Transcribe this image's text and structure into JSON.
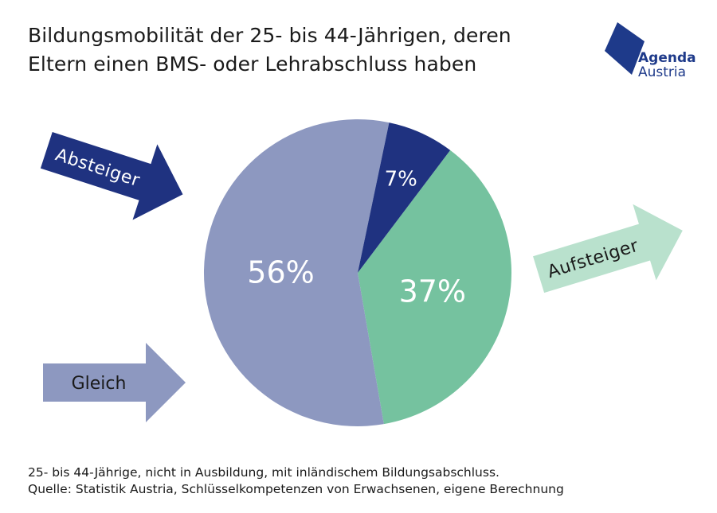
{
  "title": {
    "line1": "Bildungsmobilität der 25- bis 44-Jährigen, deren",
    "line2": "Eltern einen BMS- oder Lehrabschluss haben"
  },
  "logo": {
    "line1": "Agenda",
    "line2": "Austria"
  },
  "chart_data": {
    "type": "pie",
    "title": "Bildungsmobilität der 25- bis 44-Jährigen, deren Eltern einen BMS- oder Lehrabschluss haben",
    "slices": [
      {
        "label": "Aufsteiger",
        "value": 37,
        "value_label": "37%",
        "color": "#75c29f"
      },
      {
        "label": "Gleich",
        "value": 56,
        "value_label": "56%",
        "color": "#8d98c0"
      },
      {
        "label": "Absteiger",
        "value": 7,
        "value_label": "7%",
        "color": "#1f3280"
      }
    ]
  },
  "arrows": {
    "absteiger": {
      "label": "Absteiger",
      "color": "#1f3280",
      "text_color": "#ffffff"
    },
    "aufsteiger": {
      "label": "Aufsteiger",
      "color": "#b9e1cd",
      "text_color": "#1a1a1a"
    },
    "gleich": {
      "label": "Gleich",
      "color": "#8d98c0",
      "text_color": "#1a1a1a"
    }
  },
  "footnote": {
    "line1": "25- bis 44-Jährige, nicht in Ausbildung, mit inländischem Bildungsabschluss.",
    "line2": "Quelle: Statistik Austria, Schlüsselkompetenzen von Erwachsenen, eigene Berechnung"
  }
}
